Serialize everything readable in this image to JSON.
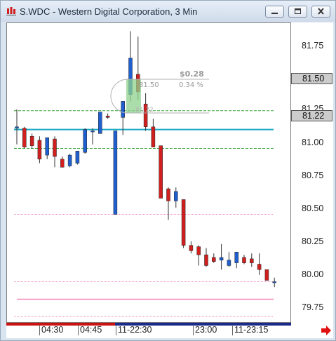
{
  "window": {
    "title": "S.WDC - Western Digital Corporation, 3 Min",
    "icon": "chart-bars-icon",
    "buttons": [
      "minimize-icon",
      "restore-icon",
      "close-icon"
    ]
  },
  "price_axis": {
    "labels": [
      "81.75",
      "81.50",
      "81.25",
      "81.22",
      "81.00",
      "80.75",
      "80.50",
      "80.25",
      "80.00",
      "79.75"
    ],
    "last_price": "81.50",
    "reference_price": "81.22"
  },
  "time_axis": {
    "labels": [
      "04:30",
      "04:45",
      "11-22:30",
      "23:00",
      "11-23:15"
    ]
  },
  "measure_tool": {
    "change": "$0.28",
    "price": "81.50",
    "percent": "0.34 %",
    "base_price": "81.22"
  },
  "colors": {
    "up_candle": "#1f5fd0",
    "down_candle": "#d11f1f",
    "level_line": "#1aa8c4",
    "green_dashed": "#3aa63a",
    "pink_line": "#f08bbd",
    "measure_fill": "#8fd18f"
  },
  "chart_data": {
    "type": "candlestick",
    "ylim": [
      79.67,
      81.9
    ],
    "candles": [
      {
        "o": 81.12,
        "h": 81.26,
        "l": 81.0,
        "c": 81.13
      },
      {
        "o": 81.12,
        "h": 81.13,
        "l": 80.97,
        "c": 80.98
      },
      {
        "o": 81.06,
        "h": 81.08,
        "l": 80.97,
        "c": 80.99
      },
      {
        "o": 81.03,
        "h": 81.06,
        "l": 80.86,
        "c": 80.89
      },
      {
        "o": 80.92,
        "h": 81.05,
        "l": 80.89,
        "c": 81.05
      },
      {
        "o": 81.04,
        "h": 81.06,
        "l": 80.83,
        "c": 80.91
      },
      {
        "o": 80.89,
        "h": 80.91,
        "l": 80.83,
        "c": 80.83
      },
      {
        "o": 80.84,
        "h": 80.93,
        "l": 80.83,
        "c": 80.92
      },
      {
        "o": 80.86,
        "h": 80.95,
        "l": 80.85,
        "c": 80.95
      },
      {
        "o": 80.94,
        "h": 81.12,
        "l": 80.93,
        "c": 81.11
      },
      {
        "o": 81.1,
        "h": 81.12,
        "l": 81.0,
        "c": 81.1
      },
      {
        "o": 81.08,
        "h": 81.24,
        "l": 81.08,
        "c": 81.24
      },
      {
        "o": 81.21,
        "h": 81.23,
        "l": 81.19,
        "c": 81.2
      },
      {
        "o": 80.48,
        "h": 81.1,
        "l": 80.48,
        "c": 81.1
      },
      {
        "o": 81.2,
        "h": 81.32,
        "l": 81.07,
        "c": 81.32
      },
      {
        "o": 81.37,
        "h": 81.84,
        "l": 81.32,
        "c": 81.64
      },
      {
        "o": 81.52,
        "h": 81.8,
        "l": 81.33,
        "c": 81.39
      },
      {
        "o": 81.3,
        "h": 81.38,
        "l": 81.1,
        "c": 81.13
      },
      {
        "o": 81.13,
        "h": 81.19,
        "l": 80.98,
        "c": 80.98
      },
      {
        "o": 80.99,
        "h": 80.99,
        "l": 80.6,
        "c": 80.6
      },
      {
        "o": 80.67,
        "h": 80.68,
        "l": 80.44,
        "c": 80.58
      },
      {
        "o": 80.58,
        "h": 80.68,
        "l": 80.53,
        "c": 80.65
      },
      {
        "o": 80.59,
        "h": 80.59,
        "l": 80.23,
        "c": 80.25
      },
      {
        "o": 80.25,
        "h": 80.28,
        "l": 80.19,
        "c": 80.21
      },
      {
        "o": 80.24,
        "h": 80.25,
        "l": 80.1,
        "c": 80.18
      },
      {
        "o": 80.18,
        "h": 80.23,
        "l": 80.09,
        "c": 80.1
      },
      {
        "o": 80.16,
        "h": 80.19,
        "l": 80.12,
        "c": 80.13
      },
      {
        "o": 80.14,
        "h": 80.26,
        "l": 80.07,
        "c": 80.16
      },
      {
        "o": 80.1,
        "h": 80.2,
        "l": 80.09,
        "c": 80.14
      },
      {
        "o": 80.12,
        "h": 80.2,
        "l": 80.08,
        "c": 80.2
      },
      {
        "o": 80.16,
        "h": 80.18,
        "l": 80.11,
        "c": 80.12
      },
      {
        "o": 80.15,
        "h": 80.19,
        "l": 80.09,
        "c": 80.12
      },
      {
        "o": 80.11,
        "h": 80.19,
        "l": 80.03,
        "c": 80.07
      },
      {
        "o": 80.07,
        "h": 80.07,
        "l": 79.99,
        "c": 79.99
      },
      {
        "o": 79.98,
        "h": 80.01,
        "l": 79.94,
        "c": 79.98
      }
    ],
    "horizontal_lines": [
      {
        "y": 81.25,
        "style": "green-dashed"
      },
      {
        "y": 81.11,
        "style": "cyan-solid"
      },
      {
        "y": 80.97,
        "style": "green-dashed"
      },
      {
        "y": 80.48,
        "style": "pink-dotted"
      },
      {
        "y": 79.98,
        "style": "pink-dotted"
      },
      {
        "y": 79.85,
        "style": "pink-solid"
      },
      {
        "y": 79.72,
        "style": "pink-dotted"
      }
    ]
  }
}
